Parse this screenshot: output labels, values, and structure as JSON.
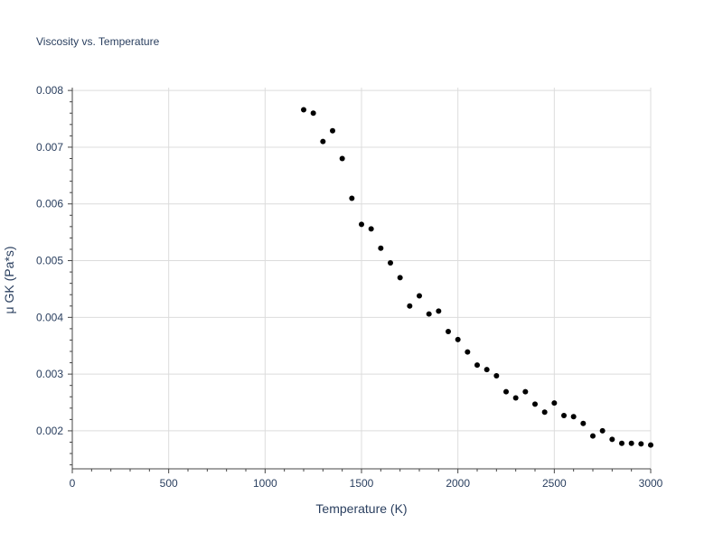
{
  "chart_data": {
    "type": "scatter",
    "title": "Viscosity vs. Temperature",
    "xlabel": "Temperature (K)",
    "ylabel": "μ GK (Pa*s)",
    "xlim": [
      0,
      3000
    ],
    "ylim": [
      0.00133,
      0.00805
    ],
    "x_ticks": [
      0,
      500,
      1000,
      1500,
      2000,
      2500,
      3000
    ],
    "x_tick_labels": [
      "0",
      "500",
      "1000",
      "1500",
      "2000",
      "2500",
      "3000"
    ],
    "y_ticks": [
      0.002,
      0.003,
      0.004,
      0.005,
      0.006,
      0.007,
      0.008
    ],
    "y_tick_labels": [
      "0.002",
      "0.003",
      "0.004",
      "0.005",
      "0.006",
      "0.007",
      "0.008"
    ],
    "grid": true,
    "marker_color": "#000000",
    "series": [
      {
        "name": "μ GK",
        "x": [
          1200,
          1250,
          1300,
          1350,
          1400,
          1450,
          1500,
          1550,
          1600,
          1650,
          1700,
          1750,
          1800,
          1850,
          1900,
          1950,
          2000,
          2050,
          2100,
          2150,
          2200,
          2250,
          2300,
          2350,
          2400,
          2450,
          2500,
          2550,
          2600,
          2650,
          2700,
          2750,
          2800,
          2850,
          2900,
          2950,
          3000
        ],
        "y": [
          0.00766,
          0.0076,
          0.0071,
          0.00729,
          0.0068,
          0.0061,
          0.00564,
          0.00556,
          0.00522,
          0.00496,
          0.0047,
          0.0042,
          0.00438,
          0.00406,
          0.00411,
          0.00375,
          0.00361,
          0.00339,
          0.00316,
          0.00308,
          0.00297,
          0.00269,
          0.00258,
          0.00269,
          0.00247,
          0.00233,
          0.00249,
          0.00227,
          0.00225,
          0.00213,
          0.00191,
          0.002,
          0.00185,
          0.00178,
          0.00178,
          0.00177,
          0.00175
        ]
      }
    ]
  }
}
